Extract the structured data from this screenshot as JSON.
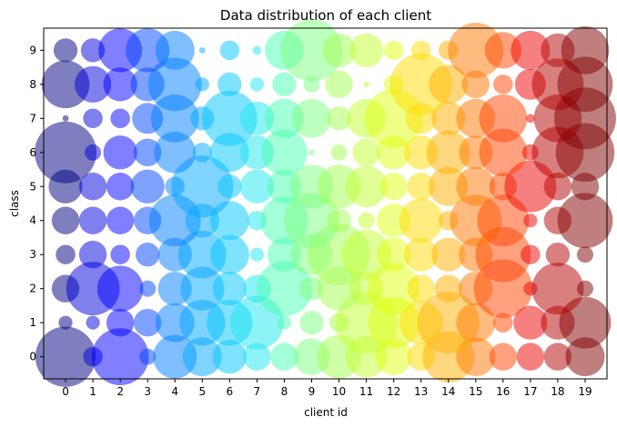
{
  "chart_data": {
    "type": "scatter",
    "title": "Data distribution of each client",
    "xlabel": "client id",
    "ylabel": "class",
    "x_ticks": [
      "0",
      "1",
      "2",
      "3",
      "4",
      "5",
      "6",
      "7",
      "8",
      "9",
      "10",
      "11",
      "12",
      "13",
      "14",
      "15",
      "16",
      "17",
      "18",
      "19"
    ],
    "y_ticks": [
      "0",
      "1",
      "2",
      "3",
      "4",
      "5",
      "6",
      "7",
      "8",
      "9"
    ],
    "xlim": [
      -0.8,
      19.8
    ],
    "ylim": [
      -0.65,
      9.65
    ],
    "grid": false,
    "marker_alpha": 0.5,
    "client_colors": [
      "#000080",
      "#0000dd",
      "#0000ff",
      "#0044ff",
      "#0080ff",
      "#00a8ff",
      "#00c8ff",
      "#1ee8f0",
      "#48ffb0",
      "#7cff80",
      "#a4ff52",
      "#c4ff30",
      "#e0ff10",
      "#ffdc00",
      "#ffb000",
      "#ff7800",
      "#ff4400",
      "#ee0000",
      "#b40000",
      "#800000"
    ],
    "relative_sizes": [
      [
        0.95,
        0.1,
        0.85,
        0.07,
        0.5,
        0.4,
        0.3,
        0.2,
        0.2,
        0.35,
        0.5,
        0.45,
        0.35,
        0.2,
        0.7,
        0.4,
        0.2,
        0.2,
        0.2,
        0.4
      ],
      [
        0.05,
        0.05,
        0.2,
        0.2,
        0.4,
        0.55,
        0.55,
        0.75,
        0.05,
        0.15,
        0.1,
        1.0,
        0.7,
        0.5,
        1.0,
        0.4,
        0.1,
        0.3,
        0.3,
        0.7
      ],
      [
        0.2,
        0.75,
        0.55,
        0.07,
        0.3,
        0.5,
        0.3,
        0.2,
        0.8,
        0.15,
        0.5,
        0.3,
        0.7,
        0.2,
        0.2,
        0.3,
        0.9,
        0.05,
        0.7,
        0.07
      ],
      [
        0.1,
        0.2,
        0.1,
        0.15,
        0.3,
        0.6,
        0.4,
        0.05,
        0.3,
        0.45,
        1.0,
        0.65,
        0.3,
        0.3,
        0.3,
        0.3,
        0.8,
        0.1,
        0.15,
        0.07
      ],
      [
        0.2,
        0.2,
        0.2,
        0.2,
        0.7,
        0.3,
        0.4,
        0.1,
        0.6,
        0.8,
        0.15,
        0.07,
        0.3,
        0.5,
        0.1,
        0.7,
        0.7,
        0.05,
        0.2,
        0.8
      ],
      [
        0.3,
        0.2,
        0.2,
        0.3,
        0.1,
        1.0,
        0.15,
        0.3,
        0.3,
        0.5,
        0.5,
        0.45,
        0.2,
        0.2,
        0.4,
        0.4,
        0.2,
        0.7,
        0.2,
        0.2
      ],
      [
        1.0,
        0.07,
        0.3,
        0.2,
        0.45,
        0.1,
        0.4,
        0.3,
        0.55,
        0.01,
        0.07,
        0.2,
        0.3,
        0.3,
        0.5,
        0.3,
        0.6,
        0.07,
        0.7,
        0.9
      ],
      [
        0.01,
        0.1,
        0.1,
        0.25,
        0.6,
        0.15,
        0.8,
        0.3,
        0.4,
        0.4,
        0.15,
        0.4,
        0.9,
        0.25,
        0.3,
        0.4,
        0.6,
        0.02,
        0.6,
        1.0
      ],
      [
        0.6,
        0.35,
        0.3,
        0.3,
        0.75,
        0.05,
        0.15,
        0.05,
        0.15,
        0.07,
        0.2,
        0.01,
        0.1,
        1.0,
        0.4,
        0.2,
        0.1,
        0.25,
        0.7,
        0.8
      ],
      [
        0.15,
        0.15,
        0.5,
        0.5,
        0.4,
        0.01,
        0.1,
        0.02,
        0.4,
        1.0,
        0.3,
        0.3,
        0.1,
        0.1,
        0.1,
        0.8,
        0.35,
        0.4,
        0.3,
        0.6
      ]
    ]
  }
}
